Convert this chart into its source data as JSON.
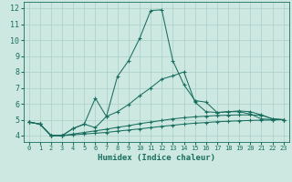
{
  "title": "",
  "xlabel": "Humidex (Indice chaleur)",
  "ylabel": "",
  "bg_color": "#cce8e0",
  "grid_color": "#aacfc8",
  "line_color": "#1a6e60",
  "xlim": [
    -0.5,
    23.5
  ],
  "ylim": [
    3.6,
    12.4
  ],
  "xticks": [
    0,
    1,
    2,
    3,
    4,
    5,
    6,
    7,
    8,
    9,
    10,
    11,
    12,
    13,
    14,
    15,
    16,
    17,
    18,
    19,
    20,
    21,
    22,
    23
  ],
  "yticks": [
    4,
    5,
    6,
    7,
    8,
    9,
    10,
    11,
    12
  ],
  "series": [
    {
      "x": [
        0,
        1,
        2,
        3,
        4,
        5,
        6,
        7,
        8,
        9,
        10,
        11,
        12,
        13,
        14,
        15,
        16,
        17,
        18,
        19,
        20,
        21,
        22,
        23
      ],
      "y": [
        4.85,
        4.72,
        4.0,
        4.0,
        4.05,
        4.1,
        4.15,
        4.2,
        4.28,
        4.35,
        4.42,
        4.5,
        4.58,
        4.65,
        4.72,
        4.78,
        4.82,
        4.87,
        4.9,
        4.93,
        4.95,
        4.97,
        4.98,
        5.0
      ],
      "marker": "+"
    },
    {
      "x": [
        0,
        1,
        2,
        3,
        4,
        5,
        6,
        7,
        8,
        9,
        10,
        11,
        12,
        13,
        14,
        15,
        16,
        17,
        18,
        19,
        20,
        21,
        22,
        23
      ],
      "y": [
        4.85,
        4.72,
        4.0,
        4.0,
        4.1,
        4.2,
        4.3,
        4.4,
        4.52,
        4.62,
        4.75,
        4.85,
        4.95,
        5.05,
        5.12,
        5.18,
        5.22,
        5.26,
        5.28,
        5.3,
        5.3,
        5.28,
        5.05,
        5.0
      ],
      "marker": "+"
    },
    {
      "x": [
        0,
        1,
        2,
        3,
        4,
        5,
        6,
        7,
        8,
        9,
        10,
        11,
        12,
        13,
        14,
        15,
        16,
        17,
        18,
        19,
        20,
        21,
        22,
        23
      ],
      "y": [
        4.85,
        4.72,
        4.0,
        4.0,
        4.45,
        4.72,
        6.35,
        5.2,
        5.5,
        5.95,
        6.5,
        7.0,
        7.55,
        7.75,
        8.0,
        6.1,
        5.5,
        5.45,
        5.5,
        5.55,
        5.5,
        5.3,
        5.05,
        5.0
      ],
      "marker": "+"
    },
    {
      "x": [
        0,
        1,
        2,
        3,
        4,
        5,
        6,
        7,
        8,
        9,
        10,
        11,
        12,
        13,
        14,
        15,
        16,
        17,
        18,
        19,
        20,
        21,
        22,
        23
      ],
      "y": [
        4.85,
        4.72,
        4.0,
        4.0,
        4.45,
        4.72,
        4.5,
        5.2,
        7.72,
        8.7,
        10.1,
        11.85,
        11.9,
        8.7,
        7.2,
        6.2,
        6.1,
        5.45,
        5.5,
        5.5,
        5.35,
        5.05,
        5.0,
        5.0
      ],
      "marker": "+"
    }
  ]
}
